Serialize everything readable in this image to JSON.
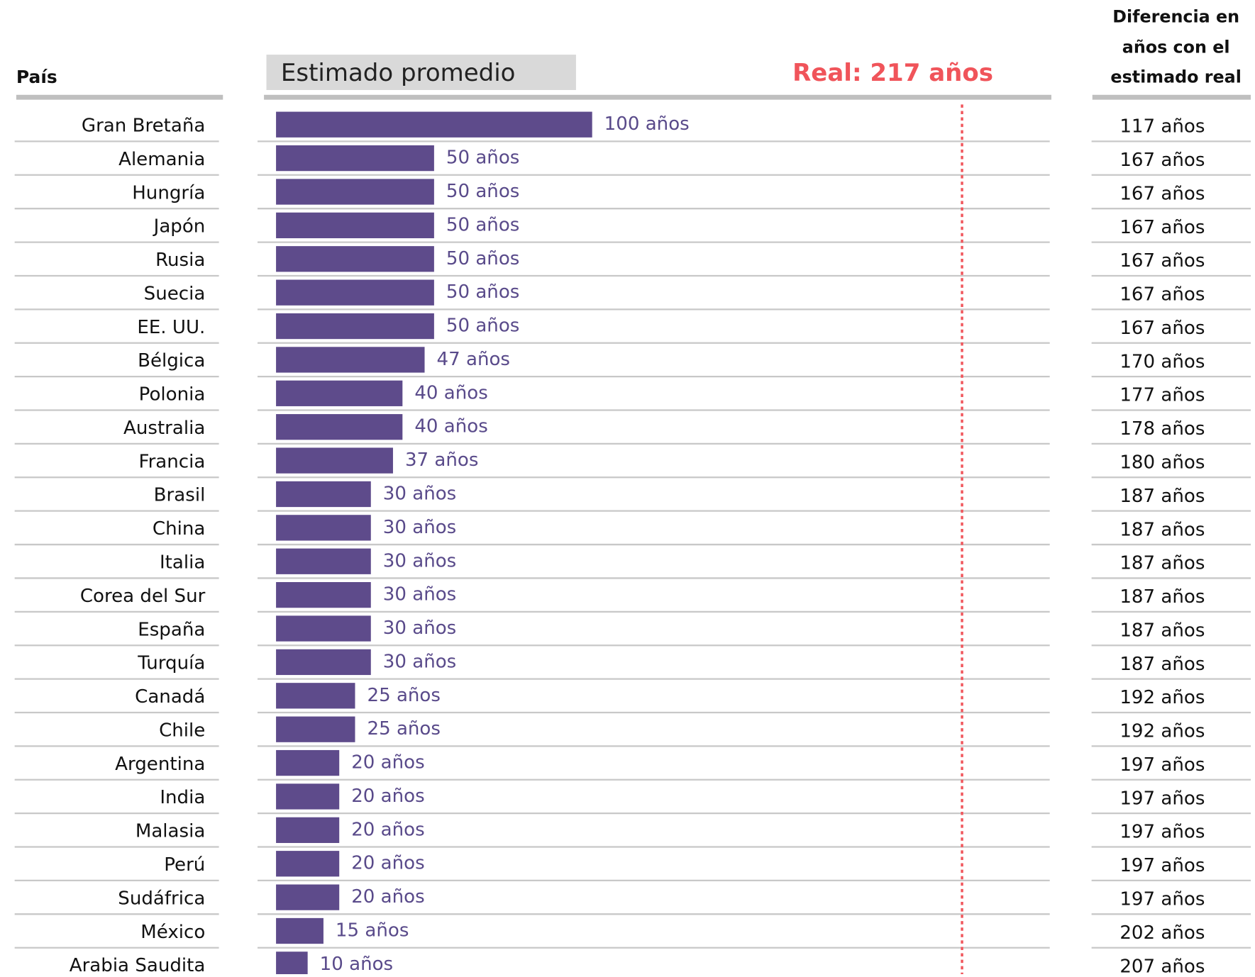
{
  "chart_data": {
    "type": "bar",
    "orientation": "horizontal",
    "country_header": "País",
    "title": "Estimado promedio",
    "difference_header": [
      "Diferencia en",
      "años con el",
      "estimado real"
    ],
    "reference": {
      "value": 217,
      "label": "Real: 217 años",
      "color": "#f0545a"
    },
    "categories": [
      "Gran Bretaña",
      "Alemania",
      "Hungría",
      "Japón",
      "Rusia",
      "Suecia",
      "EE. UU.",
      "Bélgica",
      "Polonia",
      "Australia",
      "Francia",
      "Brasil",
      "China",
      "Italia",
      "Corea del Sur",
      "España",
      "Turquía",
      "Canadá",
      "Chile",
      "Argentina",
      "India",
      "Malasia",
      "Perú",
      "Sudáfrica",
      "México",
      "Arabia Saudita"
    ],
    "values": [
      100,
      50,
      50,
      50,
      50,
      50,
      50,
      47,
      40,
      40,
      37,
      30,
      30,
      30,
      30,
      30,
      30,
      25,
      25,
      20,
      20,
      20,
      20,
      20,
      15,
      10
    ],
    "value_labels": [
      "100 años",
      "50 años",
      "50 años",
      "50 años",
      "50 años",
      "50 años",
      "50 años",
      "47 años",
      "40 años",
      "40 años",
      "37 años",
      "30 años",
      "30 años",
      "30 años",
      "30 años",
      "30 años",
      "30 años",
      "25 años",
      "25 años",
      "20 años",
      "20 años",
      "20 años",
      "20 años",
      "20 años",
      "15 años",
      "10 años"
    ],
    "differences": [
      117,
      167,
      167,
      167,
      167,
      167,
      167,
      170,
      177,
      178,
      180,
      187,
      187,
      187,
      187,
      187,
      187,
      192,
      192,
      197,
      197,
      197,
      197,
      197,
      202,
      207
    ],
    "difference_labels": [
      "117 años",
      "167 años",
      "167 años",
      "167 años",
      "167 años",
      "167 años",
      "167 años",
      "170 años",
      "177 años",
      "178 años",
      "180 años",
      "187 años",
      "187 años",
      "187 años",
      "187 años",
      "187 años",
      "187 años",
      "192 años",
      "192 años",
      "197 años",
      "197 años",
      "197 años",
      "197 años",
      "197 años",
      "202 años",
      "207 años"
    ],
    "color": "#5e4b8b",
    "xlim": [
      0,
      245
    ]
  }
}
